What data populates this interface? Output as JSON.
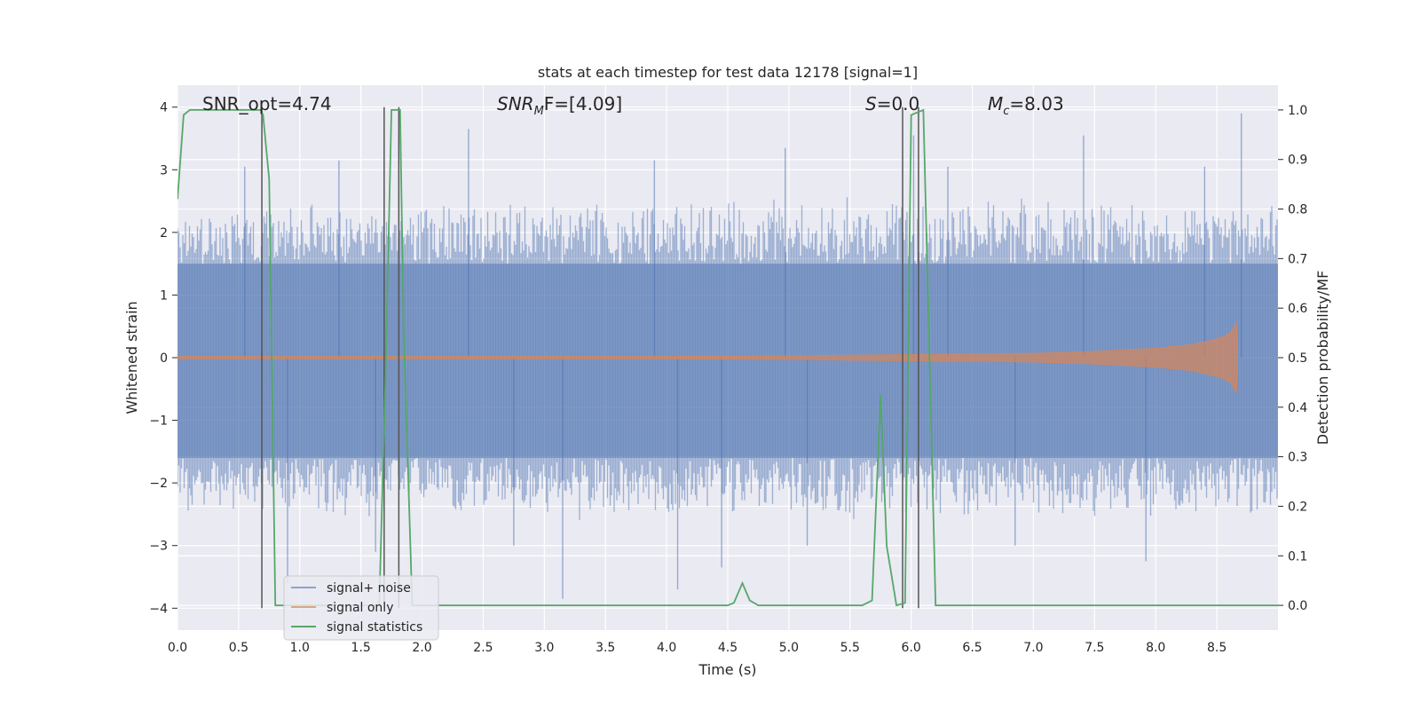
{
  "chart_data": {
    "type": "line",
    "title": "stats at each timestep for test data 12178 [signal=1]",
    "xlabel": "Time (s)",
    "ylabel": "Whitened strain",
    "ylabel_right": "Detection probability/MF",
    "xlim": [
      0,
      9.0
    ],
    "ylim": [
      -4.35,
      4.35
    ],
    "ylim_right": [
      -0.05,
      1.05
    ],
    "x_ticks": [
      "0.0",
      "0.5",
      "1.0",
      "1.5",
      "2.0",
      "2.5",
      "3.0",
      "3.5",
      "4.0",
      "4.5",
      "5.0",
      "5.5",
      "6.0",
      "6.5",
      "7.0",
      "7.5",
      "8.0",
      "8.5"
    ],
    "y_ticks": [
      "4",
      "3",
      "2",
      "1",
      "0",
      "−1",
      "−2",
      "−3",
      "−4"
    ],
    "y_ticks_right": [
      "1.0",
      "0.9",
      "0.8",
      "0.7",
      "0.6",
      "0.5",
      "0.4",
      "0.3",
      "0.2",
      "0.1",
      "0.0"
    ],
    "grid": true,
    "legend_position": "lower-left",
    "legend": [
      "signal+ noise",
      "signal only",
      "signal statistics"
    ],
    "colors": {
      "noise": "#4c72b0",
      "signal": "#dd8452",
      "statistics": "#55a868",
      "markers": "#555555",
      "background": "#eaeaf2"
    },
    "annotations": {
      "snr_opt": "SNR_opt=4.74",
      "snr_mf_base": "SNR",
      "snr_mf_sub": "M",
      "snr_mf_rest": "F=[4.09]",
      "s_base": "S",
      "s_rest": "=0.0",
      "mc_base": "M",
      "mc_sub": "c",
      "mc_rest": "=8.03"
    },
    "noise_envelope": {
      "x": [
        0.0,
        1.0,
        2.0,
        3.0,
        4.0,
        5.0,
        6.0,
        7.0,
        8.0,
        9.0
      ],
      "upper": [
        2.4,
        2.5,
        2.6,
        2.6,
        2.5,
        2.6,
        2.6,
        2.6,
        2.6,
        2.5
      ],
      "lower": [
        -2.5,
        -2.6,
        -2.6,
        -2.6,
        -2.6,
        -2.6,
        -2.6,
        -2.6,
        -2.6,
        -2.5
      ],
      "core_upper": 1.5,
      "core_lower": -1.6
    },
    "noise_spikes": [
      {
        "x": 0.55,
        "y": 3.05
      },
      {
        "x": 0.9,
        "y": -3.6
      },
      {
        "x": 1.32,
        "y": 3.15
      },
      {
        "x": 1.81,
        "y": 3.55
      },
      {
        "x": 2.38,
        "y": 3.65
      },
      {
        "x": 3.15,
        "y": -3.85
      },
      {
        "x": 4.09,
        "y": -3.7
      },
      {
        "x": 4.45,
        "y": -3.35
      },
      {
        "x": 4.97,
        "y": 3.35
      },
      {
        "x": 6.02,
        "y": 3.55
      },
      {
        "x": 6.3,
        "y": 3.05
      },
      {
        "x": 7.41,
        "y": 3.55
      },
      {
        "x": 7.92,
        "y": -3.25
      },
      {
        "x": 8.4,
        "y": 3.05
      },
      {
        "x": 8.7,
        "y": 3.9
      },
      {
        "x": 1.62,
        "y": -3.1
      },
      {
        "x": 5.15,
        "y": -3.0
      },
      {
        "x": 6.85,
        "y": -3.0
      },
      {
        "x": 2.75,
        "y": -3.0
      },
      {
        "x": 3.9,
        "y": 3.15
      }
    ],
    "signal_envelope": {
      "x": [
        0.0,
        4.0,
        5.0,
        6.0,
        7.0,
        7.5,
        8.0,
        8.3,
        8.5,
        8.6,
        8.66,
        8.67
      ],
      "amplitude": [
        0.02,
        0.02,
        0.03,
        0.05,
        0.07,
        0.1,
        0.15,
        0.21,
        0.3,
        0.38,
        0.55,
        0.0
      ]
    },
    "series": [
      {
        "name": "signal statistics",
        "axis": "right",
        "x": [
          0.0,
          0.05,
          0.1,
          0.2,
          0.4,
          0.6,
          0.68,
          0.7,
          0.75,
          0.8,
          0.8,
          1.0,
          1.5,
          1.65,
          1.7,
          1.75,
          1.82,
          1.85,
          1.92,
          2.0,
          3.0,
          4.0,
          4.5,
          4.55,
          4.62,
          4.68,
          4.75,
          5.0,
          5.5,
          5.6,
          5.68,
          5.75,
          5.8,
          5.88,
          5.95,
          6.0,
          6.1,
          6.2,
          7.0,
          8.0,
          9.0
        ],
        "values": [
          0.82,
          0.99,
          1.0,
          1.0,
          1.0,
          1.0,
          1.0,
          0.99,
          0.86,
          0.0,
          0.0,
          0.0,
          0.0,
          0.0,
          0.45,
          1.0,
          1.0,
          0.55,
          0.0,
          0.0,
          0.0,
          0.0,
          0.0,
          0.005,
          0.045,
          0.01,
          0.0,
          0.0,
          0.0,
          0.0,
          0.01,
          0.425,
          0.12,
          0.0,
          0.005,
          0.99,
          1.0,
          0.0,
          0.0,
          0.0,
          0.0
        ]
      }
    ],
    "markers_x": [
      0.69,
      1.69,
      1.81,
      5.93,
      6.06
    ],
    "marker_range": [
      -4.0,
      4.0
    ]
  }
}
